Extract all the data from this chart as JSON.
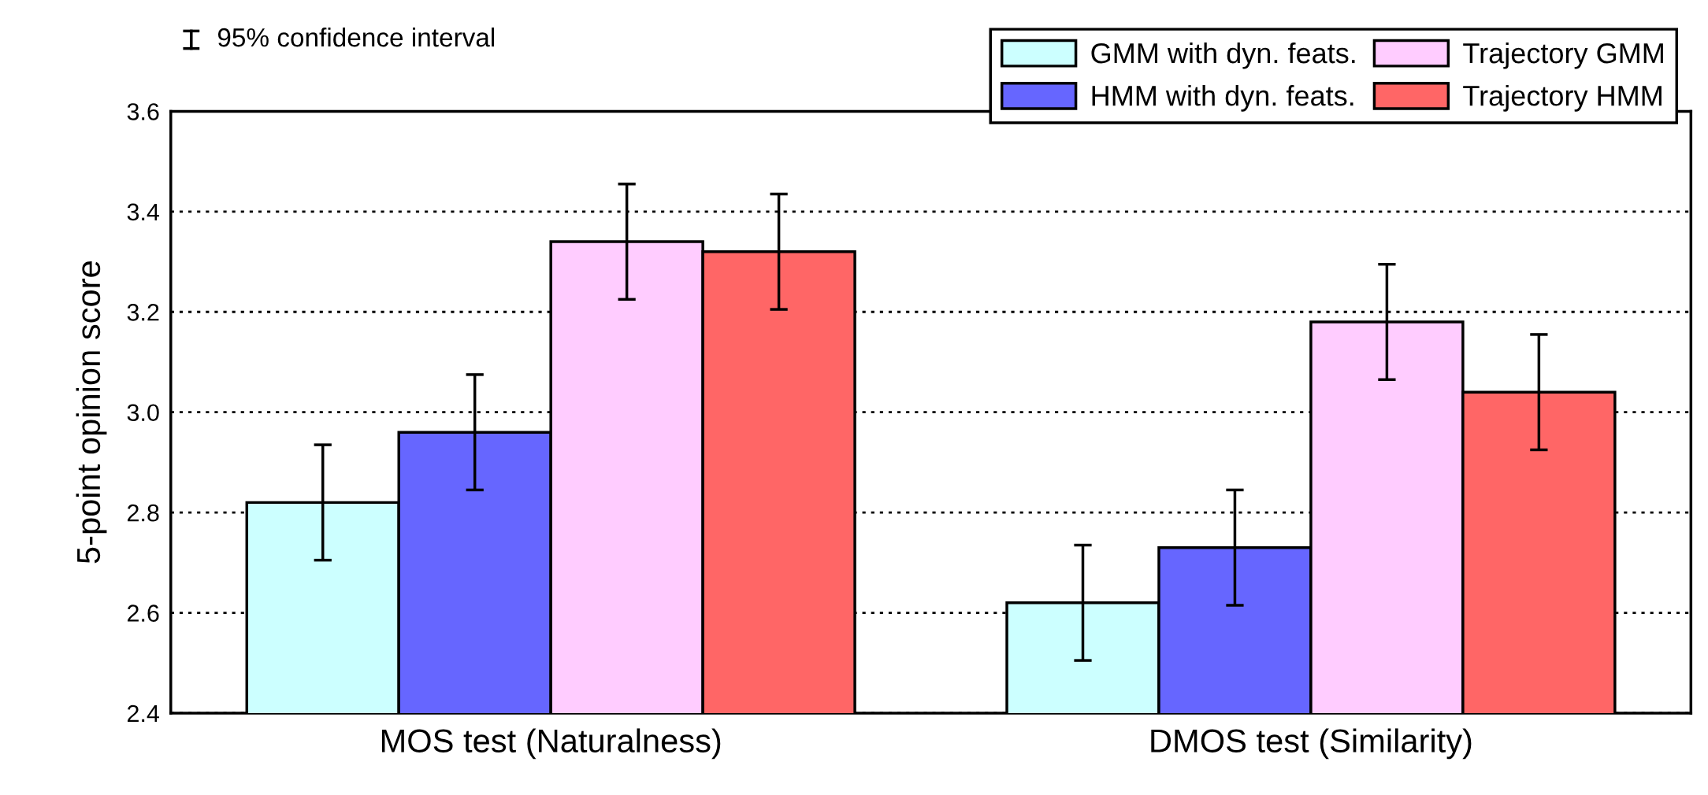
{
  "chart_data": {
    "type": "bar",
    "ylabel": "5-point opinion score",
    "categories": [
      "MOS test (Naturalness)",
      "DMOS test (Similarity)"
    ],
    "series": [
      {
        "name": "GMM with dyn. feats.",
        "color": "#ccffff",
        "values": [
          2.82,
          2.62
        ],
        "errors": [
          0.115,
          0.115
        ]
      },
      {
        "name": "HMM with dyn. feats.",
        "color": "#6666ff",
        "values": [
          2.96,
          2.73
        ],
        "errors": [
          0.115,
          0.115
        ]
      },
      {
        "name": "Trajectory GMM",
        "color": "#ffccff",
        "values": [
          3.34,
          3.18
        ],
        "errors": [
          0.115,
          0.115
        ]
      },
      {
        "name": "Trajectory HMM",
        "color": "#ff6666",
        "values": [
          3.32,
          3.04
        ],
        "errors": [
          0.115,
          0.115
        ]
      }
    ],
    "ylim": [
      2.4,
      3.6
    ],
    "yticks": [
      2.4,
      2.6,
      2.8,
      {
        "value": 3,
        "label": "3.0"
      },
      3.2,
      3.4,
      3.6
    ],
    "annotations": [
      "95% confidence interval"
    ],
    "grid": "y",
    "legend": "top right"
  }
}
